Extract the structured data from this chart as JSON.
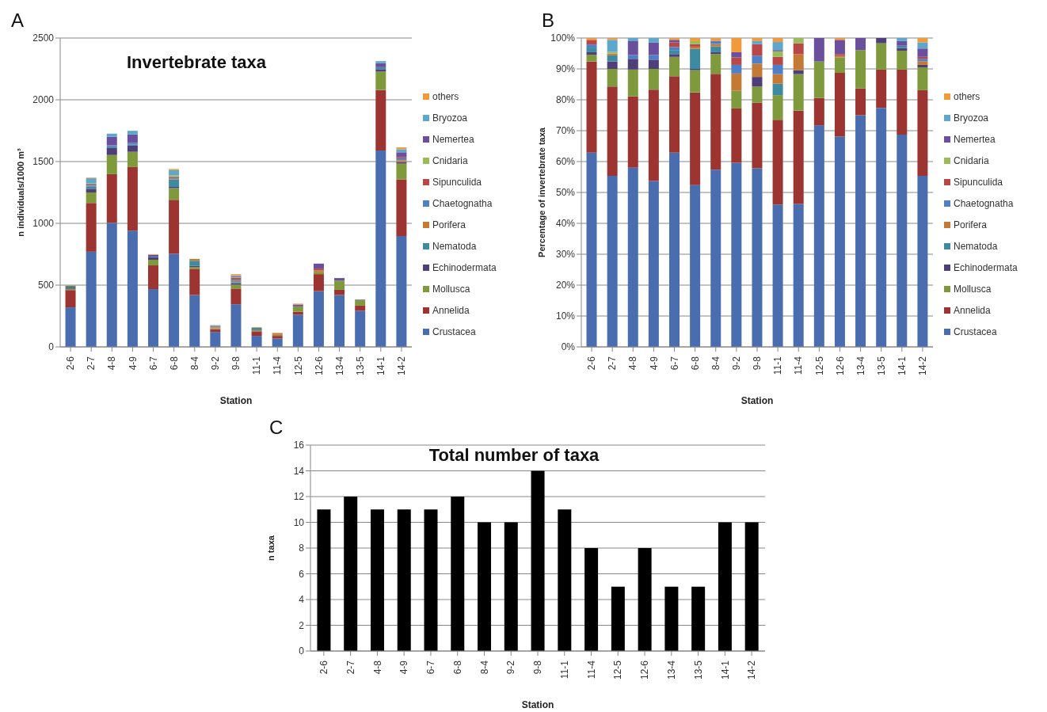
{
  "chart_data": [
    {
      "type": "bar",
      "title": "Invertebrate taxa",
      "annotations": [
        "A"
      ],
      "xlabel": "Station",
      "ylabel": "n individuals/1000 m³",
      "stacked": true,
      "grid": "y",
      "legend": "right",
      "categories": [
        "2-6",
        "2-7",
        "4-8",
        "4-9",
        "6-7",
        "6-8",
        "8-4",
        "9-2",
        "9-8",
        "11-1",
        "11-4",
        "12-5",
        "12-6",
        "13-4",
        "13-5",
        "14-1",
        "14-2"
      ],
      "ylim": [
        0,
        2500
      ],
      "yticks": [
        0,
        500,
        1000,
        1500,
        2000,
        2500
      ],
      "series": [
        {
          "name": "Crustacea",
          "color": "#4a6db0",
          "values": [
            320,
            770,
            1004,
            940,
            468,
            753,
            419,
            121,
            345,
            89,
            68,
            260,
            451,
            419,
            292,
            1590,
            898
          ]
        },
        {
          "name": "Annelida",
          "color": "#9c3532",
          "values": [
            140,
            395,
            394,
            516,
            192,
            437,
            213,
            22,
            127,
            37,
            21,
            25,
            138,
            43,
            42,
            489,
            458
          ]
        },
        {
          "name": "Mollusca",
          "color": "#7e9a3c",
          "values": [
            10,
            85,
            155,
            123,
            45,
            95,
            15,
            6,
            32,
            8,
            8,
            43,
            15,
            74,
            43,
            149,
            127
          ]
        },
        {
          "name": "Echinodermata",
          "color": "#4e3f78",
          "values": [
            10,
            30,
            60,
            50,
            20,
            10,
            10,
            0,
            10,
            5,
            0,
            0,
            0,
            0,
            5,
            20,
            13
          ]
        },
        {
          "name": "Nematoda",
          "color": "#3e8aa0",
          "values": [
            15,
            20,
            10,
            8,
            5,
            60,
            40,
            0,
            10,
            15,
            0,
            0,
            0,
            0,
            0,
            16,
            0
          ]
        },
        {
          "name": "Porifera",
          "color": "#c47a34",
          "values": [
            0,
            5,
            0,
            0,
            0,
            10,
            15,
            8,
            10,
            0,
            8,
            0,
            15,
            0,
            0,
            0,
            15
          ]
        },
        {
          "name": "Chaetognatha",
          "color": "#4f7fc9",
          "values": [
            0,
            10,
            8,
            15,
            0,
            10,
            0,
            5,
            12,
            0,
            0,
            0,
            0,
            0,
            0,
            0,
            14
          ]
        },
        {
          "name": "Sipunculida",
          "color": "#b84747",
          "values": [
            0,
            5,
            0,
            0,
            0,
            5,
            0,
            5,
            15,
            0,
            5,
            0,
            15,
            0,
            0,
            0,
            10
          ]
        },
        {
          "name": "Cnidaria",
          "color": "#9bbb59",
          "values": [
            0,
            5,
            0,
            0,
            0,
            10,
            0,
            4,
            5,
            0,
            0,
            0,
            0,
            0,
            0,
            0,
            0
          ]
        },
        {
          "name": "Nemertea",
          "color": "#6a4f9c",
          "values": [
            0,
            0,
            70,
            67,
            15,
            0,
            0,
            2,
            5,
            0,
            0,
            15,
            40,
            21,
            0,
            33,
            40
          ]
        },
        {
          "name": "Bryozoa",
          "color": "#5ea7cc",
          "values": [
            0,
            40,
            25,
            30,
            0,
            40,
            0,
            3,
            8,
            0,
            0,
            0,
            0,
            0,
            0,
            16,
            25
          ]
        },
        {
          "name": "others",
          "color": "#f09a3c",
          "values": [
            5,
            5,
            0,
            0,
            5,
            10,
            0,
            null,
            10,
            6,
            5,
            7,
            0,
            0,
            0,
            0,
            15
          ]
        }
      ]
    },
    {
      "type": "bar",
      "annotations": [
        "B"
      ],
      "xlabel": "Station",
      "ylabel": "Percentage of invertebrate taxa",
      "stacked": true,
      "grid": "y",
      "legend": "right",
      "categories": [
        "2-6",
        "2-7",
        "4-8",
        "4-9",
        "6-7",
        "6-8",
        "8-4",
        "9-2",
        "9-8",
        "11-1",
        "11-4",
        "12-5",
        "12-6",
        "13-4",
        "13-5",
        "14-1",
        "14-2"
      ],
      "ylim": [
        0,
        100
      ],
      "yticks": [
        {
          "value": 0,
          "label": "0%"
        },
        {
          "value": 10,
          "label": "10%"
        },
        {
          "value": 20,
          "label": "20%"
        },
        {
          "value": 30,
          "label": "30%"
        },
        {
          "value": 40,
          "label": "40%"
        },
        {
          "value": 50,
          "label": "50%"
        },
        {
          "value": 60,
          "label": "60%"
        },
        {
          "value": 70,
          "label": "70%"
        },
        {
          "value": 80,
          "label": "80%"
        },
        {
          "value": 90,
          "label": "90%"
        },
        {
          "value": 100,
          "label": "100%"
        }
      ],
      "series": [
        {
          "name": "Crustacea",
          "color": "#4a6db0",
          "values": [
            62.9,
            55.4,
            58.0,
            53.7,
            62.9,
            52.4,
            57.4,
            59.6,
            57.8,
            46.1,
            46.3,
            71.7,
            68.1,
            75.0,
            77.4,
            68.7,
            55.4
          ]
        },
        {
          "name": "Annelida",
          "color": "#9c3532",
          "values": [
            29.5,
            28.9,
            23.1,
            29.6,
            24.7,
            30.0,
            31.0,
            17.6,
            21.3,
            27.4,
            30.2,
            8.9,
            20.6,
            8.7,
            12.4,
            21.1,
            27.7
          ]
        },
        {
          "name": "Mollusca",
          "color": "#7e9a3c",
          "values": [
            2.2,
            5.7,
            8.7,
            6.7,
            6.3,
            7.2,
            6.4,
            5.7,
            5.2,
            8.0,
            11.8,
            11.8,
            5.0,
            12.4,
            8.5,
            6.1,
            7.4
          ]
        },
        {
          "name": "Echinodermata",
          "color": "#4e3f78",
          "values": [
            0.8,
            2.4,
            3.5,
            3.0,
            0.9,
            0.4,
            0.6,
            0,
            3.1,
            0,
            1.3,
            0,
            0,
            0,
            1.7,
            0.9,
            0.8
          ]
        },
        {
          "name": "Nematoda",
          "color": "#3e8aa0",
          "values": [
            1.5,
            2.0,
            0,
            0,
            1.3,
            6.5,
            1.9,
            0,
            0,
            3.7,
            0,
            0,
            0,
            0,
            0,
            0.7,
            0
          ]
        },
        {
          "name": "Porifera",
          "color": "#c47a34",
          "values": [
            0,
            0.6,
            0,
            0,
            0,
            0.7,
            0.8,
            5.6,
            4.3,
            3.1,
            5.2,
            0,
            0.5,
            0,
            0,
            0,
            1.2
          ]
        },
        {
          "name": "Chaetognatha",
          "color": "#4f7fc9",
          "values": [
            1.0,
            0,
            1.2,
            1.5,
            1.0,
            0,
            1.0,
            2.8,
            2.6,
            3.0,
            0,
            0,
            0,
            0,
            0,
            0,
            0.8
          ]
        },
        {
          "name": "Sipunculida",
          "color": "#b84747",
          "values": [
            1.5,
            0,
            0,
            0,
            1.5,
            0.8,
            0,
            2.4,
            3.7,
            2.6,
            3.5,
            0,
            0.6,
            0,
            0,
            0,
            0.6
          ]
        },
        {
          "name": "Cnidaria",
          "color": "#9bbb59",
          "values": [
            0,
            0.5,
            0,
            0,
            0,
            1.0,
            0,
            0,
            0,
            1.8,
            1.7,
            0,
            0,
            0,
            0,
            0,
            0
          ]
        },
        {
          "name": "Nemertea",
          "color": "#6a4f9c",
          "values": [
            0,
            0,
            4.5,
            4.0,
            0.8,
            0,
            0,
            1.7,
            0,
            0.4,
            0,
            7.6,
            4.6,
            3.9,
            0,
            1.5,
            2.7
          ]
        },
        {
          "name": "Bryozoa",
          "color": "#5ea7cc",
          "values": [
            0,
            3.9,
            1.0,
            1.5,
            0,
            0,
            0,
            0,
            1.0,
            2.6,
            0,
            0,
            0,
            0,
            0,
            1.0,
            2.0
          ]
        },
        {
          "name": "others",
          "color": "#f09a3c",
          "values": [
            0.6,
            0.6,
            0,
            0,
            0.6,
            1.0,
            0.9,
            4.6,
            1.0,
            1.3,
            0,
            0,
            0.6,
            0,
            0,
            0,
            1.4
          ]
        }
      ]
    },
    {
      "type": "bar",
      "title": "Total number of taxa",
      "annotations": [
        "C"
      ],
      "xlabel": "Station",
      "ylabel": "n taxa",
      "grid": "y",
      "color": "#000000",
      "categories": [
        "2-6",
        "2-7",
        "4-8",
        "4-9",
        "6-7",
        "6-8",
        "8-4",
        "9-2",
        "9-8",
        "11-1",
        "11-4",
        "12-5",
        "12-6",
        "13-4",
        "13-5",
        "14-1",
        "14-2"
      ],
      "ylim": [
        0,
        16
      ],
      "yticks": [
        0,
        2,
        4,
        6,
        8,
        10,
        12,
        14,
        16
      ],
      "values": [
        11,
        12,
        11,
        11,
        11,
        12,
        10,
        10,
        14,
        11,
        8,
        5,
        8,
        5,
        5,
        10,
        10
      ]
    }
  ]
}
